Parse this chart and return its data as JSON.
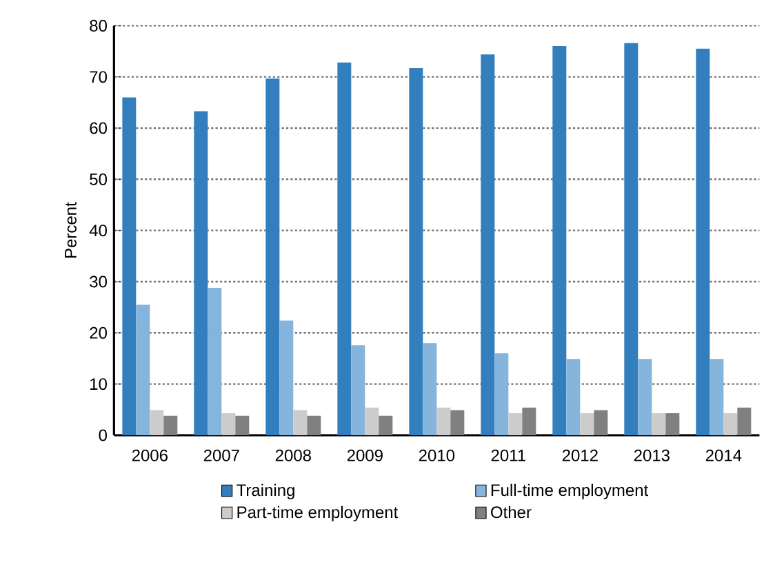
{
  "chart_data": {
    "type": "bar",
    "ylabel": "Percent",
    "categories": [
      "2006",
      "2007",
      "2008",
      "2009",
      "2010",
      "2011",
      "2012",
      "2013",
      "2014"
    ],
    "series": [
      {
        "name": "Training",
        "color": "#337fbd",
        "values": [
          66.0,
          63.3,
          69.7,
          72.8,
          71.7,
          74.4,
          76.0,
          76.6,
          75.5
        ]
      },
      {
        "name": "Full-time employment",
        "color": "#85b5dd",
        "values": [
          25.5,
          28.8,
          22.4,
          17.6,
          18.0,
          16.0,
          14.9,
          14.9,
          14.9
        ]
      },
      {
        "name": "Part-time employment",
        "color": "#cccccc",
        "values": [
          4.9,
          4.3,
          4.9,
          5.4,
          5.4,
          4.3,
          4.3,
          4.3,
          4.3
        ]
      },
      {
        "name": "Other",
        "color": "#808080",
        "values": [
          3.8,
          3.8,
          3.8,
          3.8,
          4.9,
          5.4,
          4.9,
          4.3,
          5.4
        ]
      }
    ],
    "ylim": [
      0,
      80
    ],
    "yticks": [
      0,
      10,
      20,
      30,
      40,
      50,
      60,
      70,
      80
    ],
    "grid": "y",
    "legend": "bottom"
  }
}
